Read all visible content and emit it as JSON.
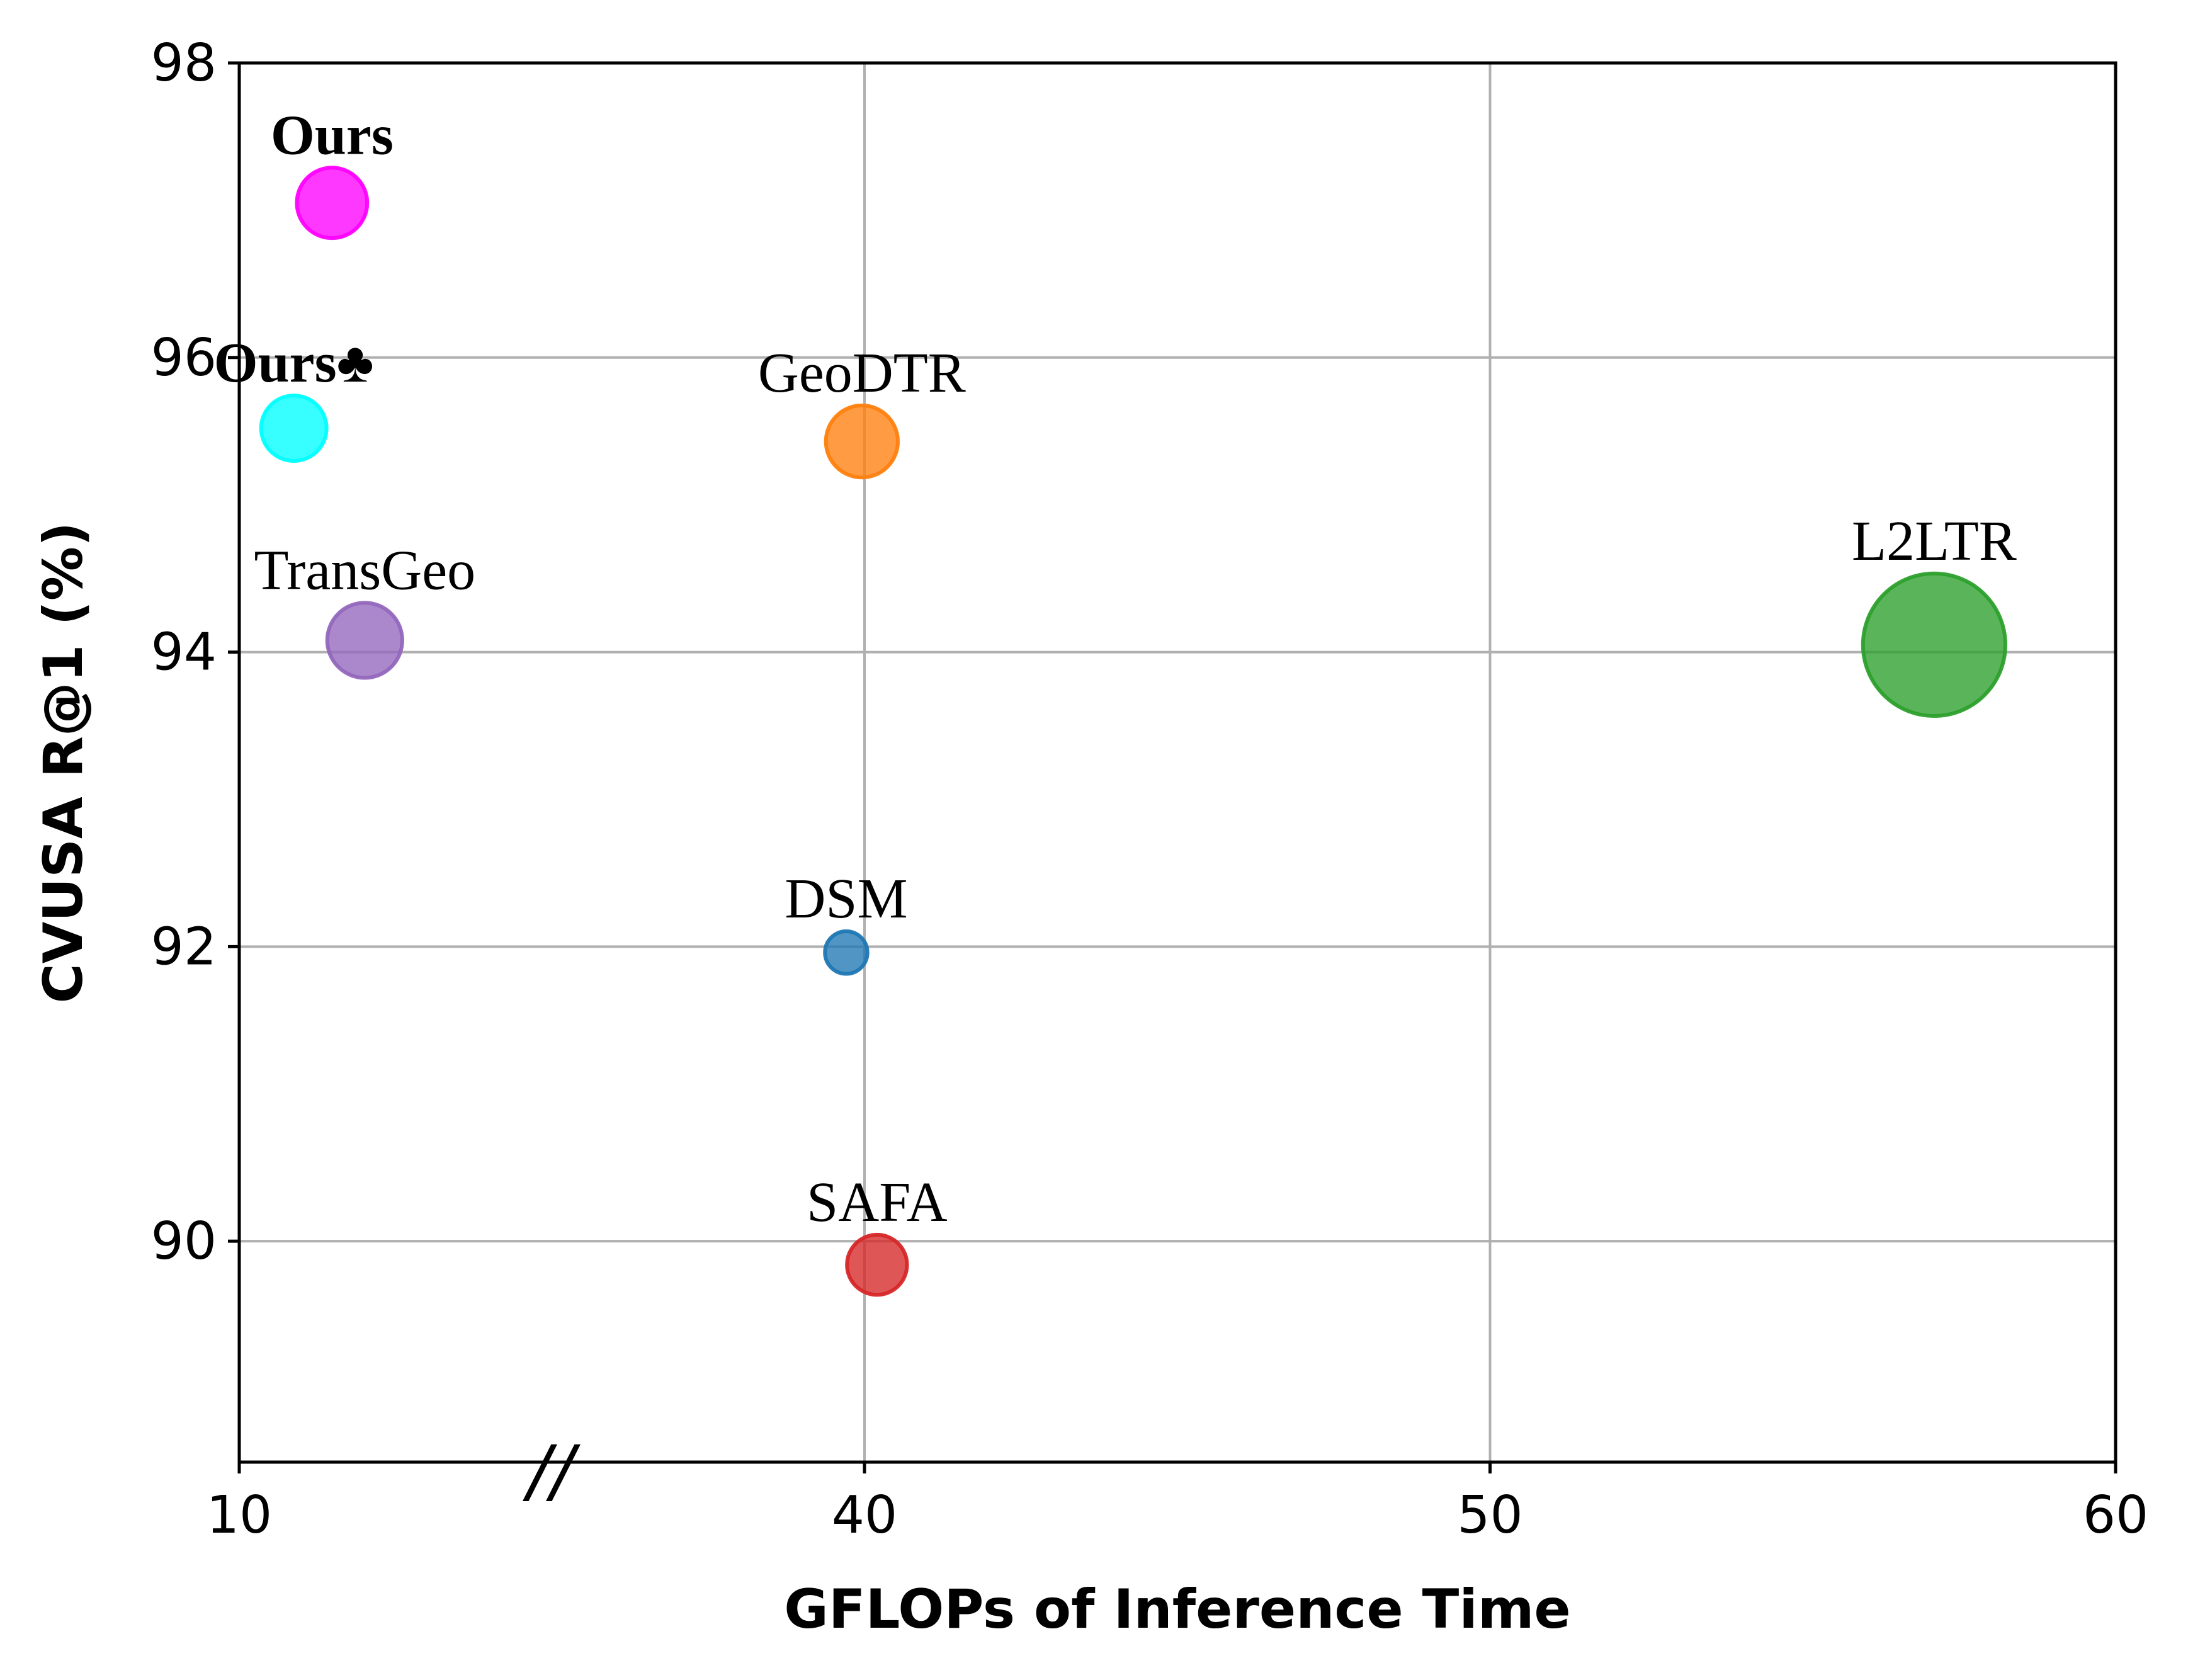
{
  "chart_data": {
    "type": "scatter",
    "xlabel": "GFLOPs of Inference Time",
    "ylabel": "CVUSA R@1 (%)",
    "x_axis": {
      "broken": true,
      "break_marker": "//",
      "ticks": [
        10,
        40,
        50,
        60
      ],
      "segments": [
        {
          "range": [
            10,
            40
          ],
          "note": "compressed segment before axis break"
        },
        {
          "range": [
            40,
            60
          ]
        }
      ]
    },
    "ylim": [
      88.5,
      98
    ],
    "yticks": [
      90,
      92,
      94,
      96,
      98
    ],
    "grid": true,
    "points": [
      {
        "label": "Ours",
        "label_bold": true,
        "x": 11.7,
        "y": 97.05,
        "size": 2.2,
        "color": "#ff00ff"
      },
      {
        "label": "Ours♣",
        "label_bold": true,
        "x": 11.0,
        "y": 95.52,
        "size": 1.9,
        "color": "#00ffff"
      },
      {
        "label": "GeoDTR",
        "label_bold": false,
        "x": 39.9,
        "y": 95.43,
        "size": 2.3,
        "color": "#ff7f0e"
      },
      {
        "label": "TransGeo",
        "label_bold": false,
        "x": 12.3,
        "y": 94.08,
        "size": 2.5,
        "color": "#9467bd"
      },
      {
        "label": "L2LTR",
        "label_bold": false,
        "x": 57.1,
        "y": 94.05,
        "size": 9.0,
        "color": "#2ca02c"
      },
      {
        "label": "DSM",
        "label_bold": false,
        "x": 39.3,
        "y": 91.96,
        "size": 0.8,
        "color": "#1f77b4"
      },
      {
        "label": "SAFA",
        "label_bold": false,
        "x": 40.2,
        "y": 89.84,
        "size": 1.6,
        "color": "#d62728"
      }
    ]
  }
}
